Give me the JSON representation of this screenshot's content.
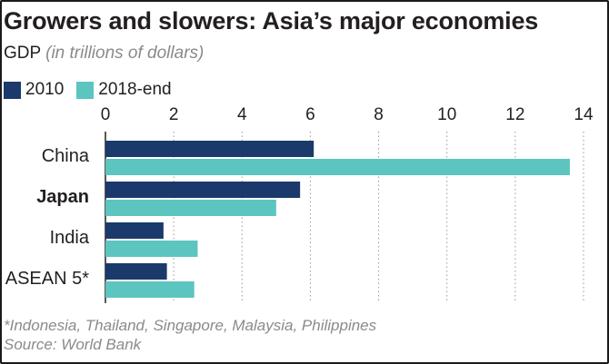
{
  "header": {
    "title": "Growers and slowers: Asia’s major economies",
    "subtitle_main": "GDP",
    "subtitle_unit": "(in trillions of dollars)"
  },
  "legend": {
    "items": [
      {
        "label": "2010",
        "color": "#1b3a6b"
      },
      {
        "label": "2018-end",
        "color": "#5cc5bf"
      }
    ]
  },
  "footer": {
    "note": "*Indonesia, Thailand, Singapore, Malaysia, Philippines",
    "source": "Source: World Bank"
  },
  "chart_data": {
    "type": "bar",
    "orientation": "horizontal",
    "title": "Growers and slowers: Asia’s major economies",
    "subtitle": "GDP (in trillions of dollars)",
    "categories": [
      "China",
      "Japan",
      "India",
      "ASEAN 5*"
    ],
    "highlight_category": "Japan",
    "series": [
      {
        "name": "2010",
        "values": [
          6.1,
          5.7,
          1.7,
          1.8
        ],
        "color": "#1b3a6b"
      },
      {
        "name": "2018-end",
        "values": [
          13.6,
          5.0,
          2.7,
          2.6
        ],
        "color": "#5cc5bf"
      }
    ],
    "xlim": [
      0,
      14
    ],
    "xticks": [
      0,
      2,
      4,
      6,
      8,
      10,
      12,
      14
    ],
    "grid": true,
    "legend_position": "top-left"
  }
}
